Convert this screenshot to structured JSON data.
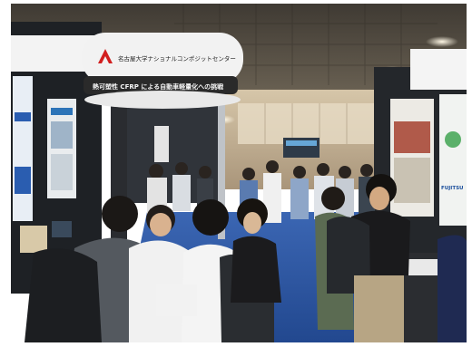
{
  "photo": {
    "subject": "trade-show-exhibition-hall",
    "colors": {
      "ceiling": "#5b5348",
      "floor_carpet": "#2f5aa6",
      "booth_panel_dark": "#1f2226",
      "sign_ring": "#f2f2f2",
      "sign_banner": "#2a2a2a",
      "logo_red": "#d21f1f",
      "back_wall": "#c8b79d",
      "light_glow": "#fff6dd"
    },
    "booth_sign": {
      "org_text": "名古屋大学ナショナルコンポジットセンター",
      "banner_text": "熱可塑性 CFRP による自動車軽量化への挑戦"
    },
    "right_panel_text": "FUJITSU"
  }
}
